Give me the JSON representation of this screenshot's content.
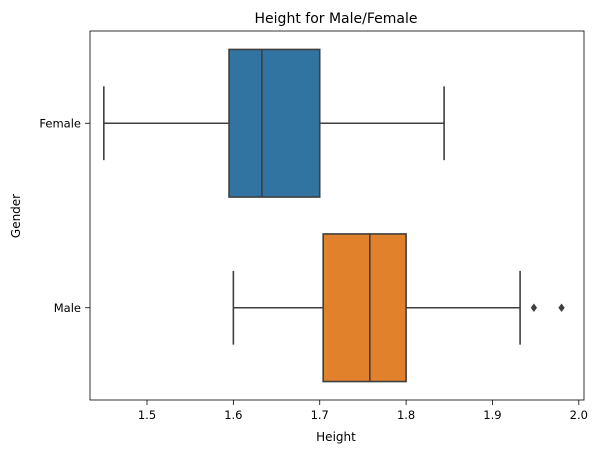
{
  "chart_data": {
    "type": "boxplot",
    "orientation": "horizontal",
    "title": "Height for Male/Female",
    "xlabel": "Height",
    "ylabel": "Gender",
    "xlim": [
      1.434,
      2.006
    ],
    "xticks": [
      "1.5",
      "1.6",
      "1.7",
      "1.8",
      "1.9",
      "2.0"
    ],
    "grid": false,
    "categories": [
      "Female",
      "Male"
    ],
    "series": [
      {
        "name": "Female",
        "color": "#3274a1",
        "whisker_low": 1.45,
        "q1": 1.595,
        "median": 1.633,
        "q3": 1.7,
        "whisker_high": 1.844,
        "outliers": []
      },
      {
        "name": "Male",
        "color": "#e1812c",
        "whisker_low": 1.6,
        "q1": 1.704,
        "median": 1.758,
        "q3": 1.8,
        "whisker_high": 1.932,
        "outliers": [
          1.948,
          1.98
        ]
      }
    ]
  }
}
